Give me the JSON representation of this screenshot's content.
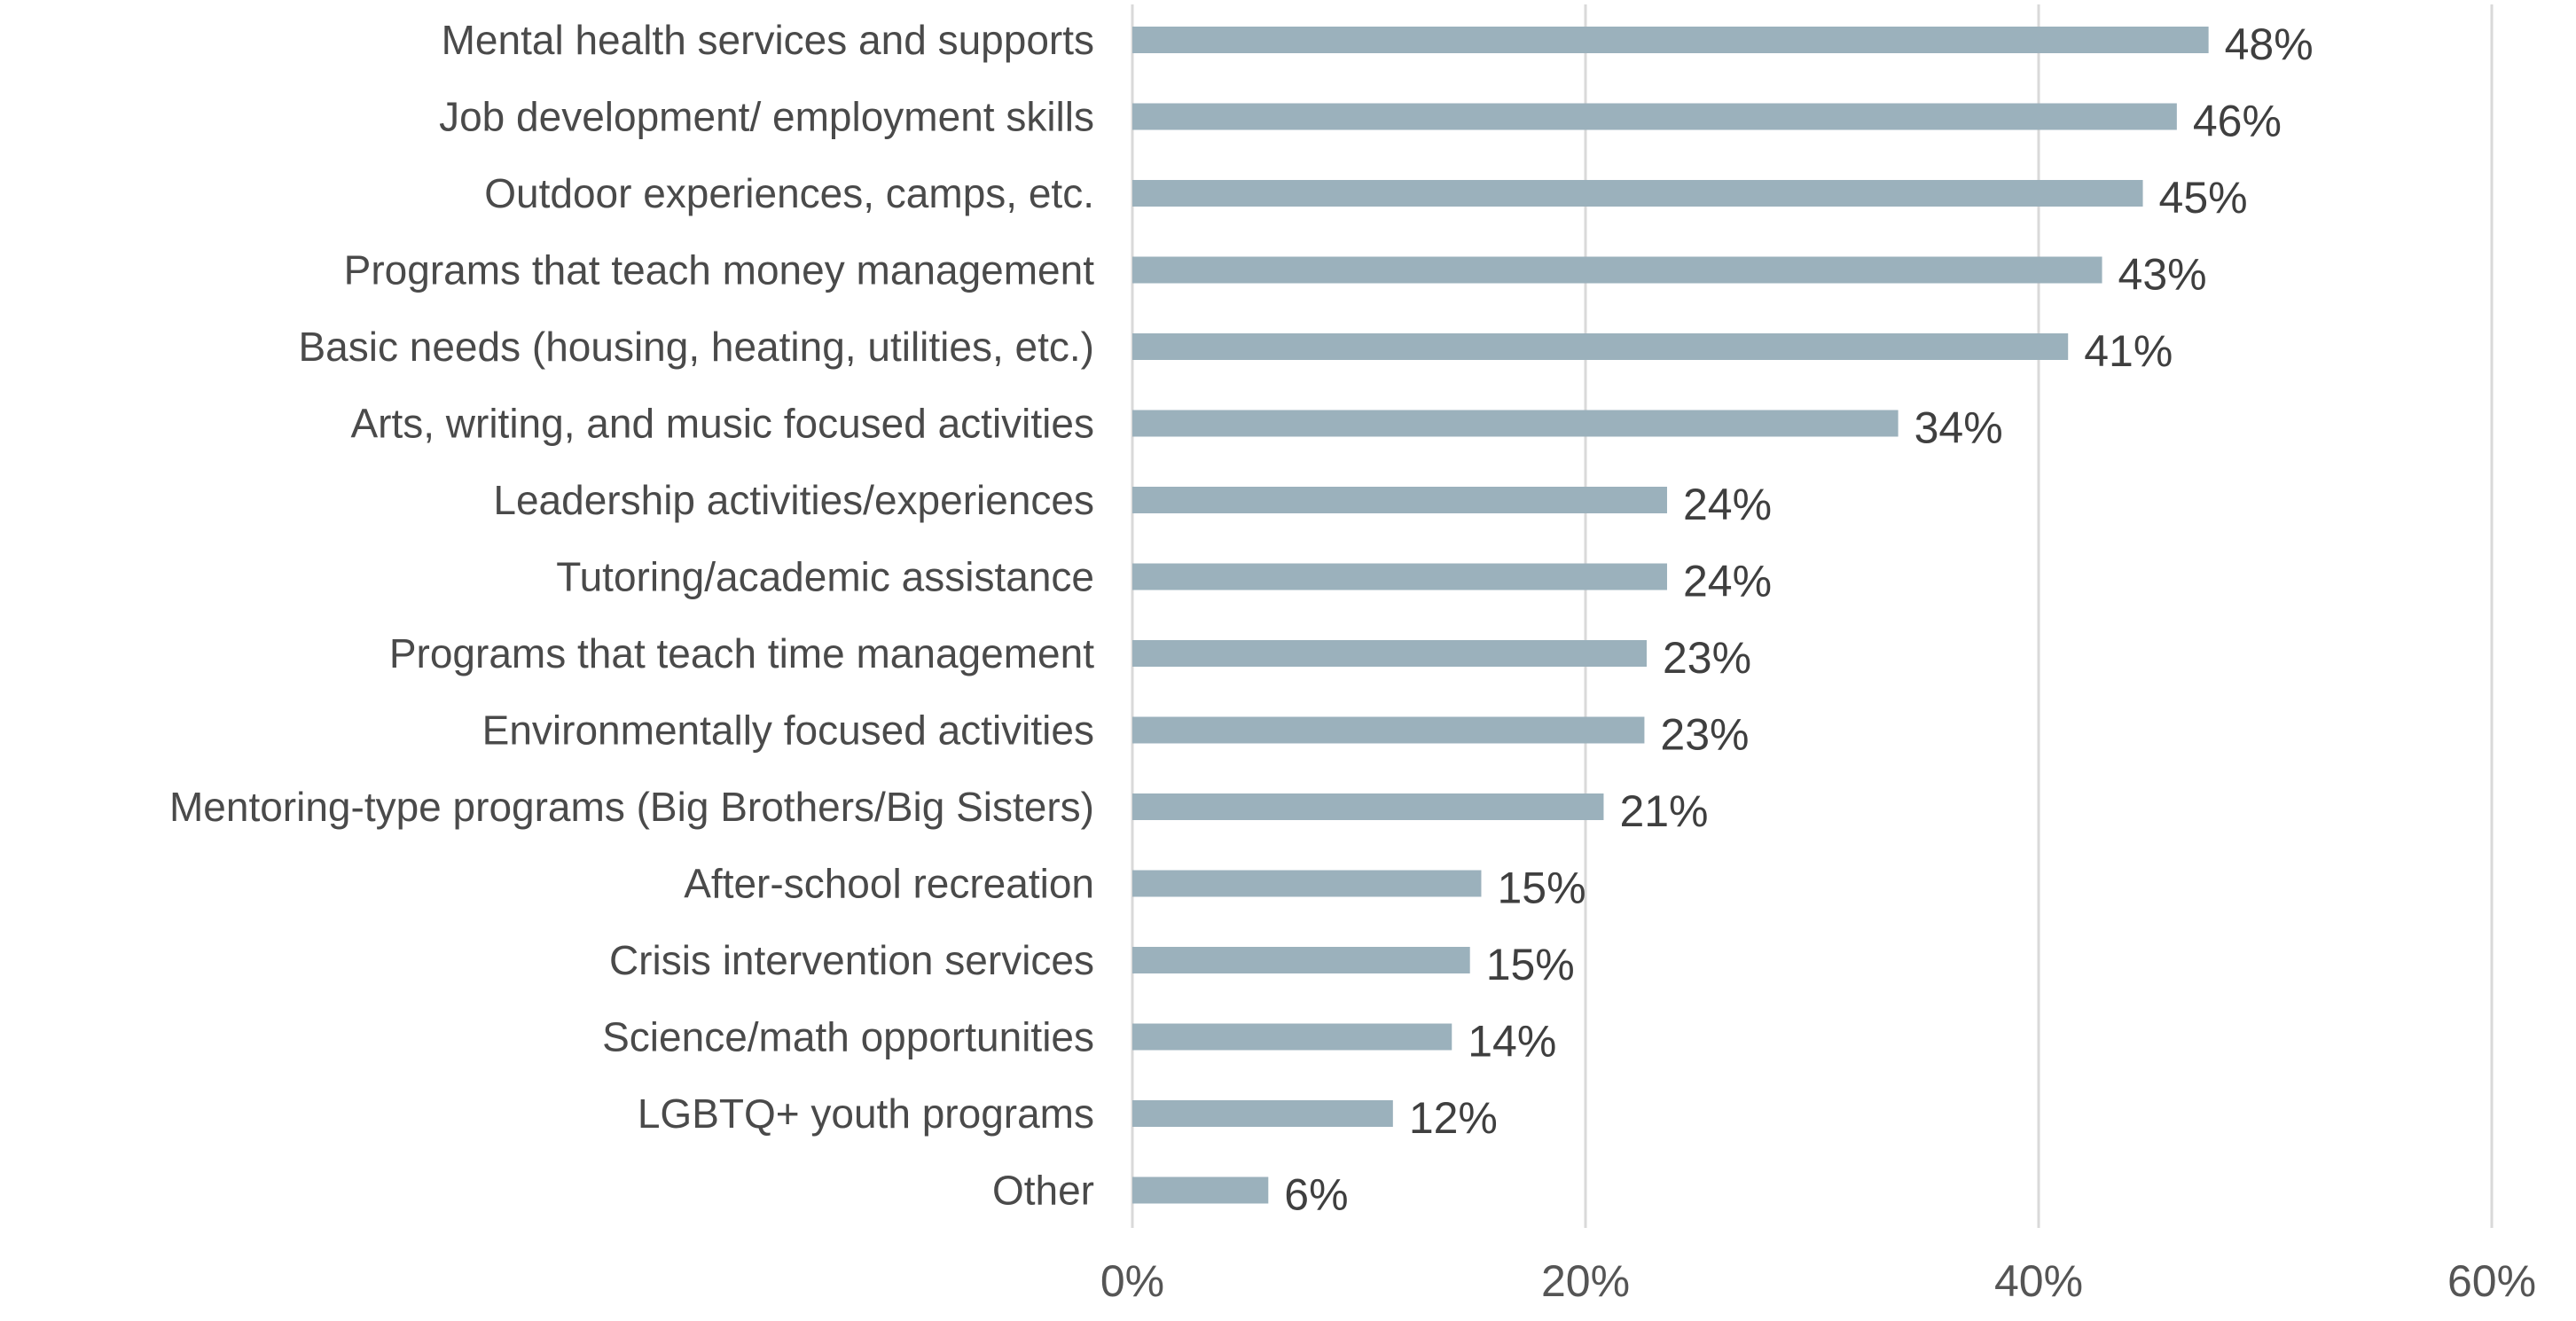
{
  "chart_data": {
    "type": "bar",
    "orientation": "horizontal",
    "title": "",
    "xlabel": "",
    "ylabel": "",
    "xlim": [
      0,
      60
    ],
    "x_ticks": [
      {
        "value": 0,
        "label": "0%"
      },
      {
        "value": 20,
        "label": "20%"
      },
      {
        "value": 40,
        "label": "40%"
      },
      {
        "value": 60,
        "label": "60%"
      }
    ],
    "grid": true,
    "legend": "none",
    "bar_color": "#9bb1bc",
    "categories": [
      "Mental health services and supports",
      "Job development/ employment skills",
      "Outdoor experiences, camps, etc.",
      "Programs that teach money management",
      "Basic needs (housing, heating, utilities, etc.)",
      "Arts, writing, and music focused activities",
      "Leadership activities/experiences",
      "Tutoring/academic assistance",
      "Programs that teach time management",
      "Environmentally focused activities",
      "Mentoring-type programs (Big Brothers/Big Sisters)",
      "After-school recreation",
      "Crisis intervention services",
      "Science/math opportunities",
      "LGBTQ+ youth programs",
      "Other"
    ],
    "values": [
      47.5,
      46.1,
      44.6,
      42.8,
      41.3,
      33.8,
      23.6,
      23.6,
      22.7,
      22.6,
      20.8,
      15.4,
      14.9,
      14.1,
      11.5,
      6.0
    ],
    "value_labels": [
      "48%",
      "46%",
      "45%",
      "43%",
      "41%",
      "34%",
      "24%",
      "24%",
      "23%",
      "23%",
      "21%",
      "15%",
      "15%",
      "14%",
      "12%",
      "6%"
    ]
  }
}
